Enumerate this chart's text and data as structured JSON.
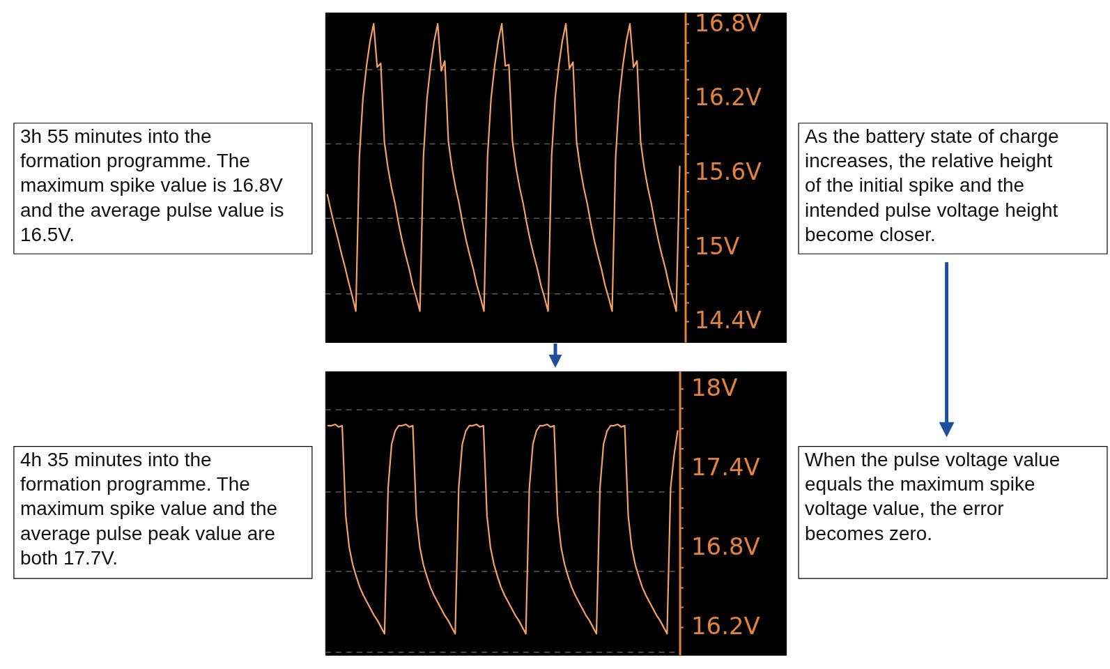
{
  "chart_data": [
    {
      "type": "line",
      "categories": [
        null,
        null,
        null,
        null,
        null,
        null,
        null,
        null,
        null,
        null,
        null,
        null,
        null,
        null,
        null,
        null,
        null,
        null,
        null,
        null,
        null,
        null,
        null,
        null,
        null,
        null,
        null,
        null,
        null,
        null,
        null,
        null,
        null,
        null,
        null,
        null,
        null,
        null,
        null,
        null,
        null,
        null,
        null,
        null,
        null,
        null,
        null,
        null,
        null,
        null,
        null,
        null,
        null,
        null,
        null,
        null,
        null,
        null,
        null,
        null,
        null,
        null,
        null,
        null,
        null,
        null,
        null,
        null,
        null,
        null,
        null,
        null,
        null,
        null,
        null,
        null,
        null,
        null,
        null,
        null,
        null,
        null,
        null,
        null,
        null,
        null,
        null,
        null,
        null,
        null,
        null,
        null,
        null,
        null,
        null,
        null,
        null,
        null,
        null,
        null
      ],
      "values": [
        15.42,
        15.29,
        15.17,
        15.06,
        14.94,
        14.83,
        14.71,
        14.6,
        14.48,
        15.73,
        16.2,
        16.46,
        16.66,
        16.8,
        16.45,
        16.48,
        15.85,
        15.64,
        15.48,
        15.35,
        15.19,
        15.05,
        14.93,
        14.82,
        14.69,
        14.59,
        14.48,
        15.73,
        16.2,
        16.46,
        16.66,
        16.8,
        16.42,
        16.5,
        15.85,
        15.64,
        15.48,
        15.35,
        15.19,
        15.05,
        14.93,
        14.82,
        14.69,
        14.59,
        14.48,
        15.73,
        16.2,
        16.46,
        16.66,
        16.8,
        16.46,
        16.47,
        15.85,
        15.64,
        15.48,
        15.35,
        15.19,
        15.05,
        14.93,
        14.82,
        14.69,
        14.59,
        14.48,
        15.73,
        16.2,
        16.46,
        16.66,
        16.8,
        16.44,
        16.49,
        15.85,
        15.64,
        15.48,
        15.35,
        15.19,
        15.05,
        14.93,
        14.82,
        14.69,
        14.59,
        14.48,
        15.73,
        16.2,
        16.46,
        16.66,
        16.8,
        16.45,
        16.5,
        15.85,
        15.64,
        15.48,
        15.35,
        15.19,
        15.05,
        14.93,
        14.82,
        14.69,
        14.59,
        14.48,
        15.65
      ],
      "color": "#f4a265",
      "ylim": [
        14.23,
        16.89
      ],
      "yticks": [
        {
          "value": 14.4,
          "label": "14.4V"
        },
        {
          "value": 14.55,
          "label": null
        },
        {
          "value": 14.7,
          "label": null
        },
        {
          "value": 14.85,
          "label": null
        },
        {
          "value": 15,
          "label": "15V"
        },
        {
          "value": 15.15,
          "label": null
        },
        {
          "value": 15.3,
          "label": null
        },
        {
          "value": 15.45,
          "label": null
        },
        {
          "value": 15.6,
          "label": "15.6V"
        },
        {
          "value": 15.75,
          "label": null
        },
        {
          "value": 15.9,
          "label": null
        },
        {
          "value": 16.05,
          "label": null
        },
        {
          "value": 16.2,
          "label": "16.2V"
        },
        {
          "value": 16.35,
          "label": null
        },
        {
          "value": 16.5,
          "label": null
        },
        {
          "value": 16.65,
          "label": null
        },
        {
          "value": 16.8,
          "label": "16.8V"
        }
      ],
      "ref_lines": [
        {
          "axis": "y",
          "value": 16.43,
          "color": "#5c5c5c",
          "line_style": "dashed"
        },
        {
          "axis": "y",
          "value": 15.83,
          "color": "#5c5c5c",
          "line_style": "dashed"
        },
        {
          "axis": "y",
          "value": 15.23,
          "color": "#5c5c5c",
          "line_style": "dashed"
        },
        {
          "axis": "y",
          "value": 14.62,
          "color": "#5c5c5c",
          "line_style": "dashed"
        }
      ],
      "annotations": [
        "3h 55 minutes into the formation programme. The maximum spike value is 16.8V and the average pulse value is 16.5V.",
        "As the battery state of charge increases, the relative height of the initial spike and the intended pulse voltage height become closer."
      ]
    },
    {
      "type": "line",
      "categories": [
        null,
        null,
        null,
        null,
        null,
        null,
        null,
        null,
        null,
        null,
        null,
        null,
        null,
        null,
        null,
        null,
        null,
        null,
        null,
        null,
        null,
        null,
        null,
        null,
        null,
        null,
        null,
        null,
        null,
        null,
        null,
        null,
        null,
        null,
        null,
        null,
        null,
        null,
        null,
        null,
        null,
        null,
        null,
        null,
        null,
        null,
        null,
        null,
        null,
        null,
        null,
        null,
        null,
        null,
        null,
        null,
        null,
        null,
        null,
        null,
        null,
        null,
        null,
        null,
        null,
        null,
        null,
        null,
        null,
        null,
        null,
        null,
        null,
        null,
        null,
        null,
        null,
        null,
        null,
        null,
        null,
        null,
        null,
        null,
        null,
        null,
        null,
        null,
        null,
        null,
        null,
        null,
        null,
        null,
        null,
        null,
        null,
        null,
        null,
        null
      ],
      "values": [
        17.72,
        17.72,
        17.73,
        17.71,
        17.72,
        17.04,
        16.8,
        16.67,
        16.58,
        16.5,
        16.44,
        16.39,
        16.34,
        16.29,
        16.25,
        16.2,
        16.15,
        17.25,
        17.58,
        17.68,
        17.72,
        17.72,
        17.73,
        17.71,
        17.72,
        17.04,
        16.8,
        16.67,
        16.58,
        16.5,
        16.44,
        16.39,
        16.34,
        16.29,
        16.25,
        16.2,
        16.15,
        17.25,
        17.58,
        17.68,
        17.72,
        17.72,
        17.73,
        17.71,
        17.72,
        17.04,
        16.8,
        16.67,
        16.58,
        16.5,
        16.44,
        16.39,
        16.34,
        16.29,
        16.25,
        16.2,
        16.15,
        17.25,
        17.58,
        17.68,
        17.72,
        17.72,
        17.73,
        17.71,
        17.72,
        17.04,
        16.8,
        16.67,
        16.58,
        16.5,
        16.44,
        16.39,
        16.34,
        16.29,
        16.25,
        16.2,
        16.15,
        17.25,
        17.58,
        17.68,
        17.72,
        17.72,
        17.73,
        17.71,
        17.72,
        17.04,
        16.8,
        16.67,
        16.58,
        16.5,
        16.44,
        16.39,
        16.34,
        16.29,
        16.25,
        16.2,
        16.15,
        17.25,
        17.5,
        17.68
      ],
      "color": "#f4a265",
      "ylim": [
        15.99,
        18.13
      ],
      "yticks": [
        {
          "value": 16.2,
          "label": "16.2V"
        },
        {
          "value": 16.35,
          "label": null
        },
        {
          "value": 16.5,
          "label": null
        },
        {
          "value": 16.65,
          "label": null
        },
        {
          "value": 16.8,
          "label": "16.8V"
        },
        {
          "value": 16.95,
          "label": null
        },
        {
          "value": 17.1,
          "label": null
        },
        {
          "value": 17.25,
          "label": null
        },
        {
          "value": 17.4,
          "label": "17.4V"
        },
        {
          "value": 17.55,
          "label": null
        },
        {
          "value": 17.7,
          "label": null
        },
        {
          "value": 17.85,
          "label": null
        },
        {
          "value": 18,
          "label": "18V"
        }
      ],
      "ref_lines": [
        {
          "axis": "y",
          "value": 17.84,
          "color": "#5c5c5c",
          "line_style": "dashed"
        },
        {
          "axis": "y",
          "value": 17.22,
          "color": "#5c5c5c",
          "line_style": "dashed"
        },
        {
          "axis": "y",
          "value": 16.62,
          "color": "#5c5c5c",
          "line_style": "dashed"
        },
        {
          "axis": "y",
          "value": 16.01,
          "color": "#5c5c5c",
          "line_style": "dashed"
        }
      ],
      "annotations": [
        "4h 35 minutes into the formation programme. The maximum spike value and the average pulse peak value are both 17.7V.",
        "When the pulse voltage value equals the maximum spike voltage value, the error becomes zero."
      ]
    }
  ]
}
